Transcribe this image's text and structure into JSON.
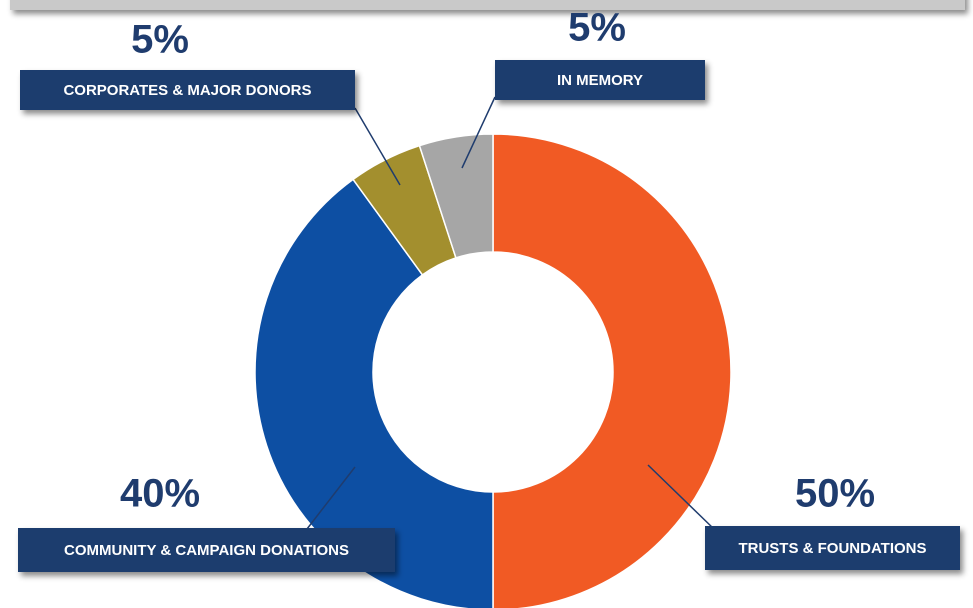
{
  "chart_data": {
    "type": "donut",
    "categories": [
      "TRUSTS & FOUNDATIONS",
      "COMMUNITY & CAMPAIGN DONATIONS",
      "CORPORATES & MAJOR DONORS",
      "IN MEMORY"
    ],
    "values": [
      50,
      40,
      5,
      5
    ],
    "value_labels": [
      "50%",
      "40%",
      "5%",
      "5%"
    ],
    "colors": [
      "#f15a24",
      "#0d4fa3",
      "#a38f2e",
      "#a6a6a6"
    ]
  }
}
